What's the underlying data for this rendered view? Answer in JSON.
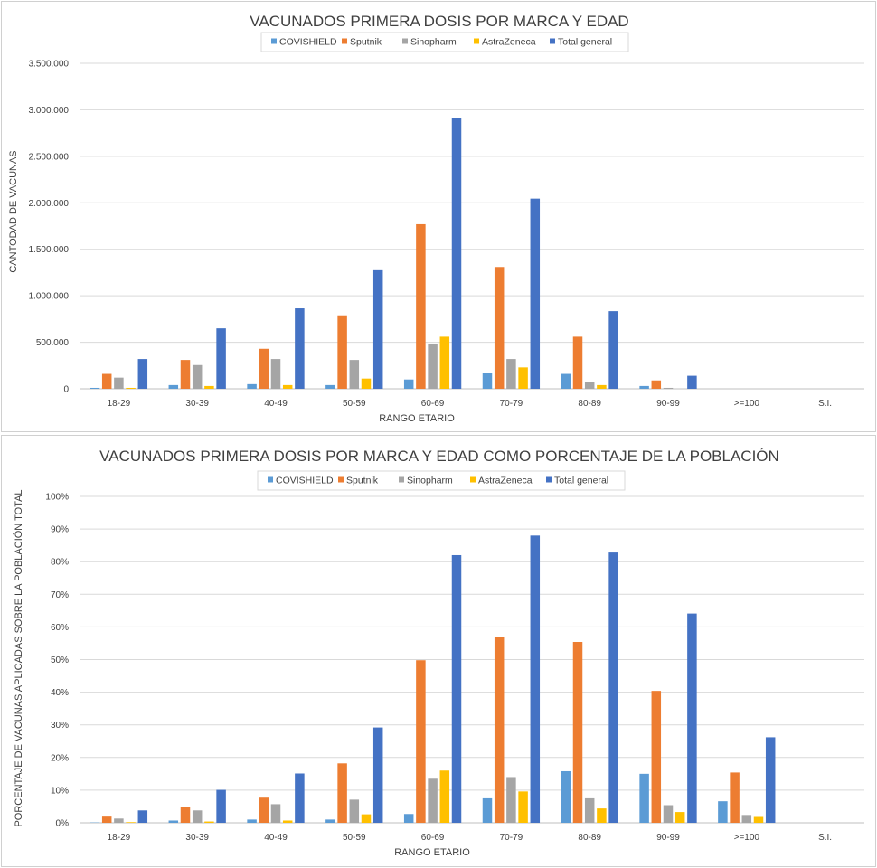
{
  "colors": {
    "COVISHIELD": "#5b9bd5",
    "Sputnik": "#ed7d31",
    "Sinopharm": "#a5a5a5",
    "AstraZeneca": "#ffc000",
    "Total general": "#4472c4",
    "gridline": "#d9d9d9",
    "text": "#404040"
  },
  "chart_data": [
    {
      "type": "bar",
      "title": "VACUNADOS PRIMERA DOSIS POR MARCA Y EDAD",
      "xlabel": "RANGO  ETARIO",
      "ylabel": "CANTODAD  DE VACUNAS",
      "ylim": [
        0,
        3500000
      ],
      "yticks": [
        0,
        500000,
        1000000,
        1500000,
        2000000,
        2500000,
        3000000,
        3500000
      ],
      "ytick_labels": [
        "0",
        "500.000",
        "1.000.000",
        "1.500.000",
        "2.000.000",
        "2.500.000",
        "3.000.000",
        "3.500.000"
      ],
      "grid": true,
      "legend_position": "top",
      "categories": [
        "18-29",
        "30-39",
        "40-49",
        "50-59",
        "60-69",
        "70-79",
        "80-89",
        "90-99",
        ">=100",
        "S.I."
      ],
      "series": [
        {
          "name": "COVISHIELD",
          "values": [
            10000,
            40000,
            50000,
            40000,
            100000,
            170000,
            160000,
            30000,
            0,
            0
          ]
        },
        {
          "name": "Sputnik",
          "values": [
            160000,
            310000,
            430000,
            790000,
            1770000,
            1310000,
            560000,
            90000,
            0,
            0
          ]
        },
        {
          "name": "Sinopharm",
          "values": [
            120000,
            255000,
            320000,
            310000,
            480000,
            320000,
            70000,
            10000,
            0,
            0
          ]
        },
        {
          "name": "AstraZeneca",
          "values": [
            10000,
            30000,
            40000,
            110000,
            560000,
            230000,
            40000,
            0,
            0,
            0
          ]
        },
        {
          "name": "Total general",
          "values": [
            320000,
            650000,
            865000,
            1275000,
            2915000,
            2045000,
            835000,
            140000,
            0,
            0
          ]
        }
      ]
    },
    {
      "type": "bar",
      "title": "VACUNADOS PRIMERA DOSIS POR MARCA Y EDAD COMO PORCENTAJE DE LA POBLACIÓN",
      "xlabel": "RANGO  ETARIO",
      "ylabel": "PORCENTAJE  DE VACUNAS  APLICADAS  SOBRE LA POBLACIÓN  TOTAL",
      "ylim": [
        0,
        100
      ],
      "yticks": [
        0,
        10,
        20,
        30,
        40,
        50,
        60,
        70,
        80,
        90,
        100
      ],
      "ytick_labels": [
        "0%",
        "10%",
        "20%",
        "30%",
        "40%",
        "50%",
        "60%",
        "70%",
        "80%",
        "90%",
        "100%"
      ],
      "grid": true,
      "legend_position": "top",
      "categories": [
        "18-29",
        "30-39",
        "40-49",
        "50-59",
        "60-69",
        "70-79",
        "80-89",
        "90-99",
        ">=100",
        "S.I."
      ],
      "series": [
        {
          "name": "COVISHIELD",
          "values": [
            0.1,
            0.7,
            1.0,
            1.0,
            2.7,
            7.5,
            15.8,
            15.0,
            6.6,
            0
          ]
        },
        {
          "name": "Sputnik",
          "values": [
            1.9,
            4.9,
            7.7,
            18.2,
            49.8,
            56.8,
            55.4,
            40.4,
            15.4,
            0
          ]
        },
        {
          "name": "Sinopharm",
          "values": [
            1.3,
            3.8,
            5.7,
            7.1,
            13.5,
            14.0,
            7.5,
            5.4,
            2.4,
            0
          ]
        },
        {
          "name": "AstraZeneca",
          "values": [
            0.2,
            0.4,
            0.7,
            2.6,
            16.0,
            9.6,
            4.4,
            3.3,
            1.8,
            0
          ]
        },
        {
          "name": "Total general",
          "values": [
            3.8,
            10.1,
            15.1,
            29.2,
            82.0,
            88.0,
            82.8,
            64.1,
            26.2,
            0
          ]
        }
      ]
    }
  ]
}
